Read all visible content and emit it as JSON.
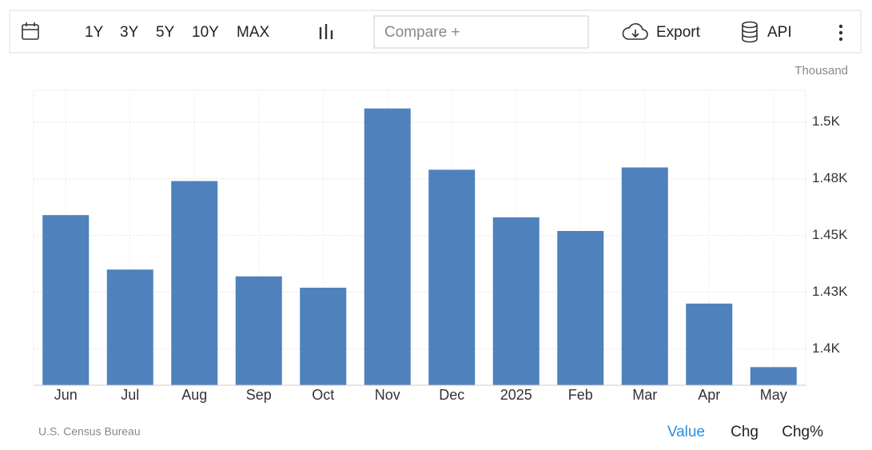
{
  "toolbar": {
    "ranges": [
      "1Y",
      "3Y",
      "5Y",
      "10Y",
      "MAX"
    ],
    "compare": "Compare +",
    "export": "Export",
    "api": "API"
  },
  "footer": {
    "source": "U.S. Census Bureau",
    "views": [
      "Value",
      "Chg",
      "Chg%"
    ]
  },
  "chart_data": {
    "type": "bar",
    "unit": "Thousand",
    "categories": [
      "Jun",
      "Jul",
      "Aug",
      "Sep",
      "Oct",
      "Nov",
      "Dec",
      "2025",
      "Feb",
      "Mar",
      "Apr",
      "May"
    ],
    "values": [
      1459,
      1435,
      1474,
      1432,
      1427,
      1506,
      1479,
      1458,
      1452,
      1480,
      1420,
      1392
    ],
    "color": "#4f81bd",
    "ylim": [
      1384,
      1514
    ],
    "yticks": [
      {
        "value": 1400,
        "label": "1.4K"
      },
      {
        "value": 1425,
        "label": "1.43K"
      },
      {
        "value": 1450,
        "label": "1.45K"
      },
      {
        "value": 1475,
        "label": "1.48K"
      },
      {
        "value": 1500,
        "label": "1.5K"
      }
    ],
    "grid": true
  }
}
